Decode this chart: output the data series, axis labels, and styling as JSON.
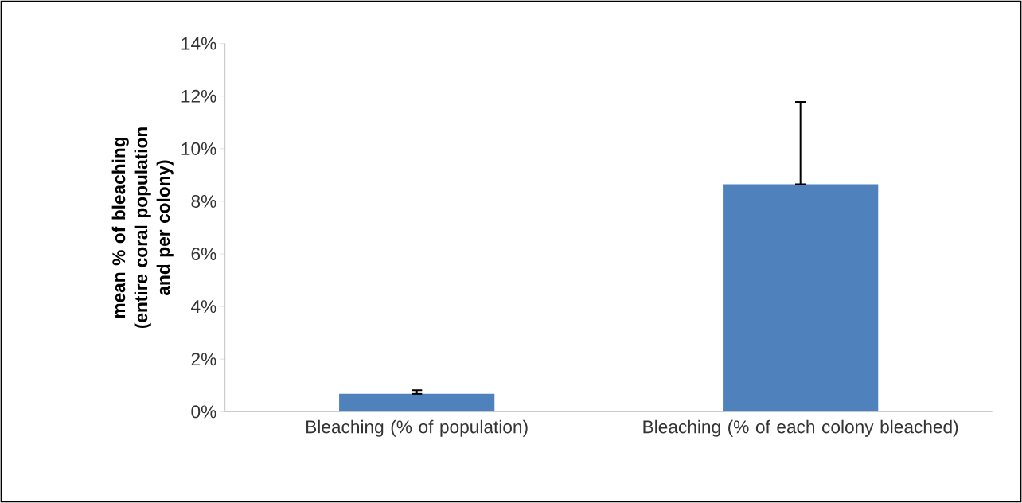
{
  "chart_data": {
    "type": "bar",
    "ylabel": "mean % of bleaching (entire coral population and per colony)",
    "categories": [
      "Bleaching (% of population)",
      "Bleaching (% of each colony bleached)"
    ],
    "values": [
      0.68,
      8.65
    ],
    "color": "#4f81bd",
    "errors": [
      [
        0.68,
        0.82
      ],
      [
        8.65,
        11.78
      ]
    ],
    "ylim": [
      0,
      14
    ],
    "yticks": [
      {
        "value": 0,
        "label": "0%"
      },
      {
        "value": 2,
        "label": "2%"
      },
      {
        "value": 4,
        "label": "4%"
      },
      {
        "value": 6,
        "label": "6%"
      },
      {
        "value": 8,
        "label": "8%"
      },
      {
        "value": 10,
        "label": "10%"
      },
      {
        "value": 12,
        "label": "12%"
      },
      {
        "value": 14,
        "label": "14%"
      }
    ],
    "grid": false
  }
}
